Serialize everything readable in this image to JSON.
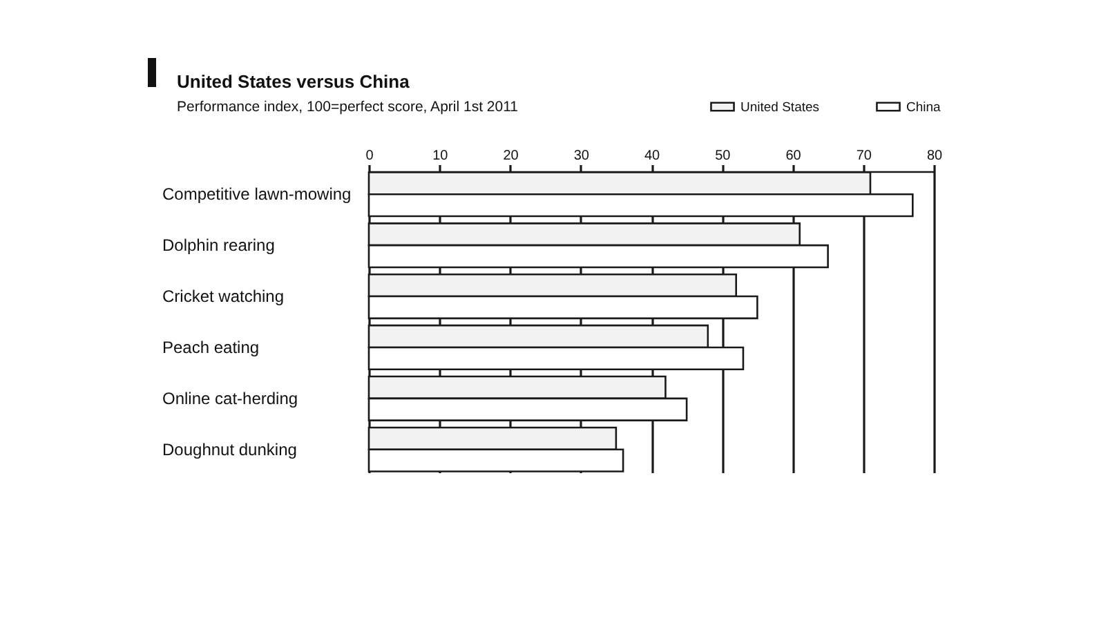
{
  "chart_data": {
    "type": "bar",
    "orientation": "horizontal",
    "title": "United States versus China",
    "subtitle": "Performance index, 100=perfect score, April 1st 2011",
    "categories": [
      "Competitive lawn-mowing",
      "Dolphin rearing",
      "Cricket watching",
      "Peach eating",
      "Online cat-herding",
      "Doughnut dunking"
    ],
    "series": [
      {
        "name": "United States",
        "color": "#f2f2f2",
        "values": [
          71,
          61,
          52,
          48,
          42,
          35
        ]
      },
      {
        "name": "China",
        "color": "#ffffff",
        "values": [
          77,
          65,
          55,
          53,
          45,
          36
        ]
      }
    ],
    "xlim": [
      0,
      80
    ],
    "xticks": [
      0,
      10,
      20,
      30,
      40,
      50,
      60,
      70,
      80
    ],
    "grid": "x",
    "legend": "top right"
  }
}
